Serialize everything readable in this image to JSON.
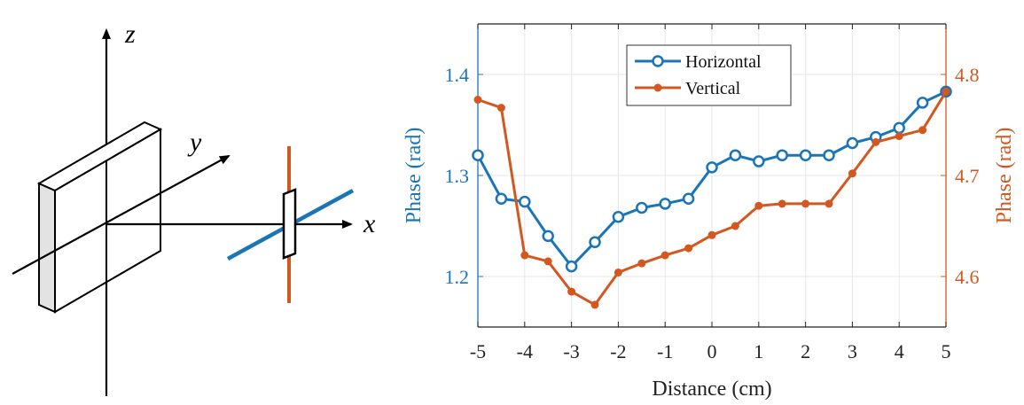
{
  "diagram": {
    "axis_labels": {
      "z": "z",
      "y": "y",
      "x": "x"
    },
    "colors": {
      "horizontal_element": "#1a74b8",
      "vertical_element": "#d4571f",
      "plate_side": "#e3e3e3"
    }
  },
  "chart_data": {
    "type": "line",
    "title": "",
    "xlabel": "Distance (cm)",
    "ylabel_left": "Phase (rad)",
    "ylabel_right": "Phase (rad)",
    "xlim": [
      -5,
      5
    ],
    "ylim_left": [
      1.15,
      1.45
    ],
    "ylim_right": [
      4.55,
      4.85
    ],
    "xticks": [
      "-5",
      "-4",
      "-3",
      "-2",
      "-1",
      "0",
      "1",
      "2",
      "3",
      "4",
      "5"
    ],
    "yticks_left": [
      "1.2",
      "1.3",
      "1.4"
    ],
    "yticks_right": [
      "4.6",
      "4.7",
      "4.8"
    ],
    "grid": true,
    "legend_position": "top-center",
    "x": [
      -5,
      -4.5,
      -4,
      -3.5,
      -3,
      -2.5,
      -2,
      -1.5,
      -1,
      -0.5,
      0,
      0.5,
      1,
      1.5,
      2,
      2.5,
      3,
      3.5,
      4,
      4.5,
      5
    ],
    "series": [
      {
        "name": "Horizontal",
        "axis": "left",
        "color": "#1a74b8",
        "marker": "circle-open",
        "values": [
          1.32,
          1.277,
          1.274,
          1.24,
          1.21,
          1.234,
          1.259,
          1.268,
          1.272,
          1.277,
          1.308,
          1.32,
          1.314,
          1.32,
          1.32,
          1.32,
          1.332,
          1.338,
          1.347,
          1.372,
          1.383
        ]
      },
      {
        "name": "Vertical",
        "axis": "right",
        "color": "#d4571f",
        "marker": "dot",
        "values": [
          4.775,
          4.767,
          4.621,
          4.615,
          4.585,
          4.572,
          4.604,
          4.613,
          4.621,
          4.628,
          4.641,
          4.65,
          4.67,
          4.672,
          4.672,
          4.672,
          4.702,
          4.733,
          4.739,
          4.745,
          4.783
        ]
      }
    ]
  }
}
